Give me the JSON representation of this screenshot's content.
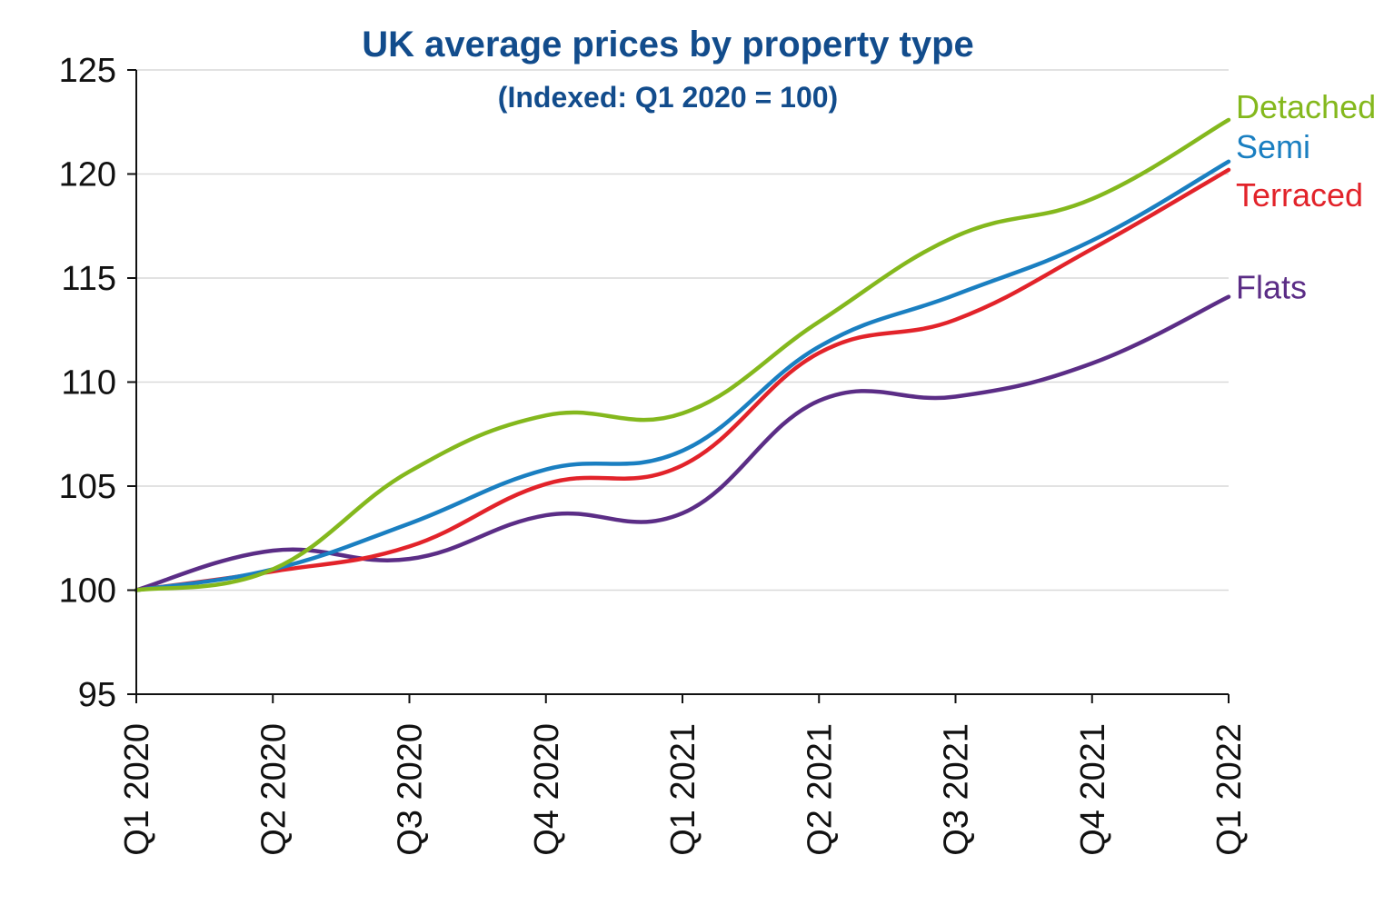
{
  "chart_data": {
    "type": "line",
    "title": "UK average prices by property type",
    "subtitle": "(Indexed:  Q1 2020 = 100)",
    "xlabel": "",
    "ylabel": "",
    "categories": [
      "Q1 2020",
      "Q2 2020",
      "Q3 2020",
      "Q4 2020",
      "Q1 2021",
      "Q2 2021",
      "Q3 2021",
      "Q4 2021",
      "Q1 2022"
    ],
    "ylim": [
      95,
      125
    ],
    "yticks": [
      95,
      100,
      105,
      110,
      115,
      120,
      125
    ],
    "grid": true,
    "legend": "inline labels at right end of lines",
    "series": [
      {
        "name": "Detached",
        "color": "#84b81d",
        "values": [
          100,
          101.0,
          105.7,
          108.4,
          108.5,
          112.9,
          117.0,
          118.8,
          122.6
        ]
      },
      {
        "name": "Semi",
        "color": "#1a7fc1",
        "values": [
          100,
          101.0,
          103.2,
          105.8,
          106.7,
          111.7,
          114.2,
          116.8,
          120.6
        ]
      },
      {
        "name": "Terraced",
        "color": "#e2232a",
        "values": [
          100,
          100.9,
          102.1,
          105.1,
          106.0,
          111.4,
          113.0,
          116.4,
          120.2
        ]
      },
      {
        "name": "Flats",
        "color": "#5b2d86",
        "values": [
          100,
          101.9,
          101.5,
          103.6,
          103.7,
          109.1,
          109.3,
          110.9,
          114.1
        ]
      }
    ],
    "colors": {
      "title": "#124c8c",
      "grid": "#d9d9d9",
      "axis": "#111111"
    }
  }
}
